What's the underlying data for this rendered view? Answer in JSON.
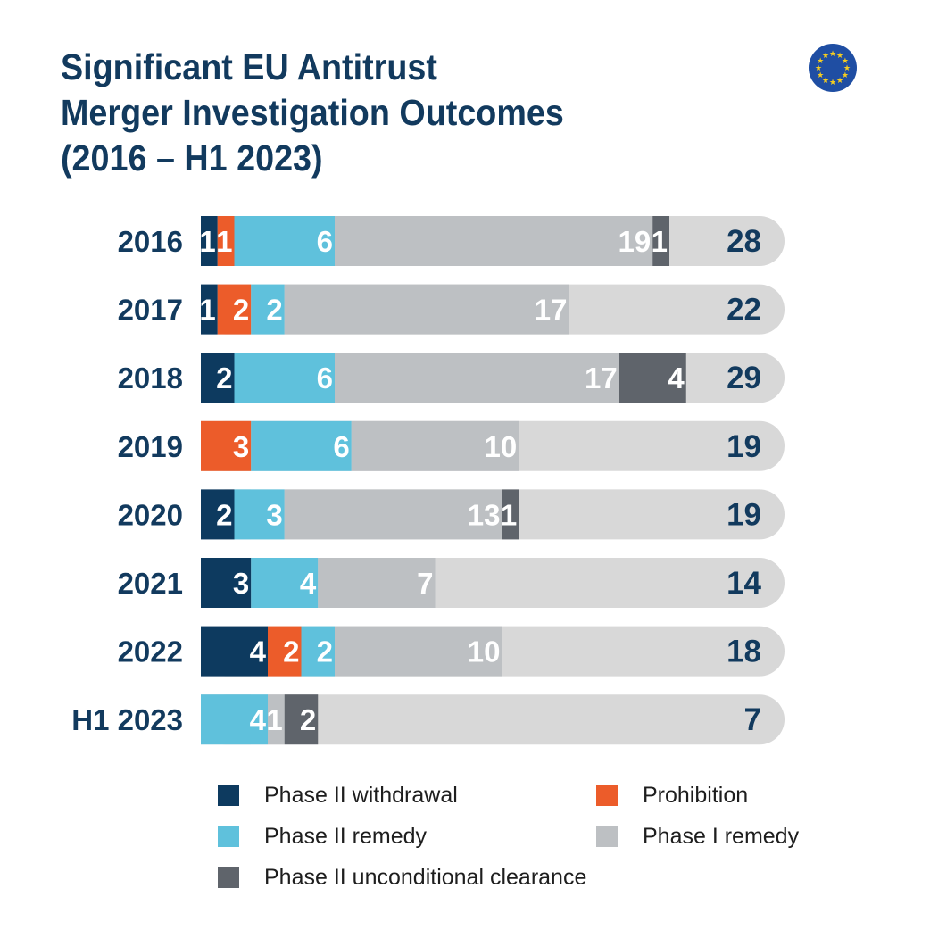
{
  "header": {
    "title_lines": [
      "Significant EU Antitrust",
      "Merger Investigation Outcomes",
      "(2016 – H1 2023)"
    ],
    "logo": "eu-flag-icon"
  },
  "colors": {
    "title": "#123a5e",
    "track": "#d8d8d8",
    "total_text": "#123a5e",
    "eu_blue": "#1f4ea3",
    "eu_star": "#f5cd20"
  },
  "chart_data": {
    "type": "bar",
    "orientation": "horizontal",
    "stacked": true,
    "title": "Significant EU Antitrust Merger Investigation Outcomes (2016 – H1 2023)",
    "categories": [
      "2016",
      "2017",
      "2018",
      "2019",
      "2020",
      "2021",
      "2022",
      "H1 2023"
    ],
    "series": [
      {
        "name": "Phase II withdrawal",
        "color": "#0d3a5f",
        "values": [
          1,
          1,
          2,
          0,
          2,
          3,
          4,
          0
        ]
      },
      {
        "name": "Prohibition",
        "color": "#ec5c2a",
        "values": [
          1,
          2,
          0,
          3,
          0,
          0,
          2,
          0
        ]
      },
      {
        "name": "Phase II remedy",
        "color": "#5fc1dc",
        "values": [
          6,
          2,
          6,
          6,
          3,
          4,
          2,
          4
        ]
      },
      {
        "name": "Phase I remedy",
        "color": "#bdc0c3",
        "values": [
          19,
          17,
          17,
          10,
          13,
          7,
          10,
          1
        ]
      },
      {
        "name": "Phase II unconditional clearance",
        "color": "#5f646b",
        "values": [
          1,
          0,
          4,
          0,
          1,
          0,
          0,
          2
        ]
      }
    ],
    "totals": [
      28,
      22,
      29,
      19,
      19,
      14,
      18,
      7
    ],
    "legend_position": "bottom",
    "grid": false
  }
}
